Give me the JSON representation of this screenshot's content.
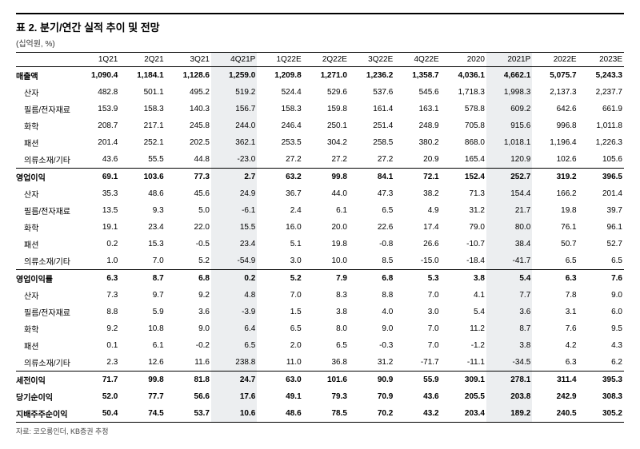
{
  "title": "표 2. 분기/연간 실적 추이 및 전망",
  "unit": "(십억원, %)",
  "footnote": "자료: 코오롱인더, KB증권 추정",
  "highlight_cols": [
    4,
    10
  ],
  "headers": [
    "",
    "1Q21",
    "2Q21",
    "3Q21",
    "4Q21P",
    "1Q22E",
    "2Q22E",
    "3Q22E",
    "4Q22E",
    "2020",
    "2021P",
    "2022E",
    "2023E"
  ],
  "rows": [
    {
      "label": "매출액",
      "bold": true,
      "section_top": true,
      "values": [
        "1,090.4",
        "1,184.1",
        "1,128.6",
        "1,259.0",
        "1,209.8",
        "1,271.0",
        "1,236.2",
        "1,358.7",
        "4,036.1",
        "4,662.1",
        "5,075.7",
        "5,243.3"
      ]
    },
    {
      "label": "산자",
      "indent": true,
      "values": [
        "482.8",
        "501.1",
        "495.2",
        "519.2",
        "524.4",
        "529.6",
        "537.6",
        "545.6",
        "1,718.3",
        "1,998.3",
        "2,137.3",
        "2,237.7"
      ]
    },
    {
      "label": "필름/전자재료",
      "indent": true,
      "values": [
        "153.9",
        "158.3",
        "140.3",
        "156.7",
        "158.3",
        "159.8",
        "161.4",
        "163.1",
        "578.8",
        "609.2",
        "642.6",
        "661.9"
      ]
    },
    {
      "label": "화학",
      "indent": true,
      "values": [
        "208.7",
        "217.1",
        "245.8",
        "244.0",
        "246.4",
        "250.1",
        "251.4",
        "248.9",
        "705.8",
        "915.6",
        "996.8",
        "1,011.8"
      ]
    },
    {
      "label": "패션",
      "indent": true,
      "values": [
        "201.4",
        "252.1",
        "202.5",
        "362.1",
        "253.5",
        "304.2",
        "258.5",
        "380.2",
        "868.0",
        "1,018.1",
        "1,196.4",
        "1,226.3"
      ]
    },
    {
      "label": "의류소재/기타",
      "indent": true,
      "values": [
        "43.6",
        "55.5",
        "44.8",
        "-23.0",
        "27.2",
        "27.2",
        "27.2",
        "20.9",
        "165.4",
        "120.9",
        "102.6",
        "105.6"
      ]
    },
    {
      "label": "영업이익",
      "bold": true,
      "section_top": true,
      "values": [
        "69.1",
        "103.6",
        "77.3",
        "2.7",
        "63.2",
        "99.8",
        "84.1",
        "72.1",
        "152.4",
        "252.7",
        "319.2",
        "396.5"
      ]
    },
    {
      "label": "산자",
      "indent": true,
      "values": [
        "35.3",
        "48.6",
        "45.6",
        "24.9",
        "36.7",
        "44.0",
        "47.3",
        "38.2",
        "71.3",
        "154.4",
        "166.2",
        "201.4"
      ]
    },
    {
      "label": "필름/전자재료",
      "indent": true,
      "values": [
        "13.5",
        "9.3",
        "5.0",
        "-6.1",
        "2.4",
        "6.1",
        "6.5",
        "4.9",
        "31.2",
        "21.7",
        "19.8",
        "39.7"
      ]
    },
    {
      "label": "화학",
      "indent": true,
      "values": [
        "19.1",
        "23.4",
        "22.0",
        "15.5",
        "16.0",
        "20.0",
        "22.6",
        "17.4",
        "79.0",
        "80.0",
        "76.1",
        "96.1"
      ]
    },
    {
      "label": "패션",
      "indent": true,
      "values": [
        "0.2",
        "15.3",
        "-0.5",
        "23.4",
        "5.1",
        "19.8",
        "-0.8",
        "26.6",
        "-10.7",
        "38.4",
        "50.7",
        "52.7"
      ]
    },
    {
      "label": "의류소재/기타",
      "indent": true,
      "values": [
        "1.0",
        "7.0",
        "5.2",
        "-54.9",
        "3.0",
        "10.0",
        "8.5",
        "-15.0",
        "-18.4",
        "-41.7",
        "6.5",
        "6.5"
      ]
    },
    {
      "label": "영업이익률",
      "bold": true,
      "section_top": true,
      "values": [
        "6.3",
        "8.7",
        "6.8",
        "0.2",
        "5.2",
        "7.9",
        "6.8",
        "5.3",
        "3.8",
        "5.4",
        "6.3",
        "7.6"
      ]
    },
    {
      "label": "산자",
      "indent": true,
      "values": [
        "7.3",
        "9.7",
        "9.2",
        "4.8",
        "7.0",
        "8.3",
        "8.8",
        "7.0",
        "4.1",
        "7.7",
        "7.8",
        "9.0"
      ]
    },
    {
      "label": "필름/전자재료",
      "indent": true,
      "values": [
        "8.8",
        "5.9",
        "3.6",
        "-3.9",
        "1.5",
        "3.8",
        "4.0",
        "3.0",
        "5.4",
        "3.6",
        "3.1",
        "6.0"
      ]
    },
    {
      "label": "화학",
      "indent": true,
      "values": [
        "9.2",
        "10.8",
        "9.0",
        "6.4",
        "6.5",
        "8.0",
        "9.0",
        "7.0",
        "11.2",
        "8.7",
        "7.6",
        "9.5"
      ]
    },
    {
      "label": "패션",
      "indent": true,
      "values": [
        "0.1",
        "6.1",
        "-0.2",
        "6.5",
        "2.0",
        "6.5",
        "-0.3",
        "7.0",
        "-1.2",
        "3.8",
        "4.2",
        "4.3"
      ]
    },
    {
      "label": "의류소재/기타",
      "indent": true,
      "values": [
        "2.3",
        "12.6",
        "11.6",
        "238.8",
        "11.0",
        "36.8",
        "31.2",
        "-71.7",
        "-11.1",
        "-34.5",
        "6.3",
        "6.2"
      ]
    },
    {
      "label": "세전이익",
      "bold": true,
      "section_top": true,
      "values": [
        "71.7",
        "99.8",
        "81.8",
        "24.7",
        "63.0",
        "101.6",
        "90.9",
        "55.9",
        "309.1",
        "278.1",
        "311.4",
        "395.3"
      ]
    },
    {
      "label": "당기순이익",
      "bold": true,
      "values": [
        "52.0",
        "77.7",
        "56.6",
        "17.6",
        "49.1",
        "79.3",
        "70.9",
        "43.6",
        "205.5",
        "203.8",
        "242.9",
        "308.3"
      ]
    },
    {
      "label": "지배주주순이익",
      "bold": true,
      "section_bottom": true,
      "values": [
        "50.4",
        "74.5",
        "53.7",
        "10.6",
        "48.6",
        "78.5",
        "70.2",
        "43.2",
        "203.4",
        "189.2",
        "240.5",
        "305.2"
      ]
    }
  ]
}
